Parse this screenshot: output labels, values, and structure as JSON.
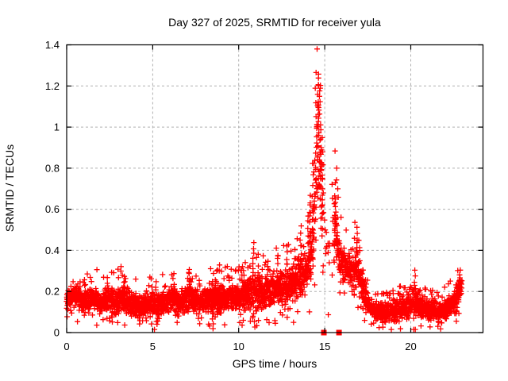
{
  "window": {
    "background": "#ffffff"
  },
  "chart_data": {
    "type": "scatter",
    "title": "Day 327 of 2025, SRMTID for receiver yula",
    "xlabel": "GPS time / hours",
    "ylabel": "SRMTID / TECUs",
    "xlim": [
      0,
      24.2
    ],
    "ylim": [
      0,
      1.4
    ],
    "xticks": [
      0,
      5,
      10,
      15,
      20
    ],
    "yticks": [
      0,
      0.2,
      0.4,
      0.6,
      0.8,
      1,
      1.2,
      1.4
    ],
    "xtick_labels": [
      "0",
      "5",
      "10",
      "15",
      "20"
    ],
    "ytick_labels": [
      "0",
      "0.2",
      "0.4",
      "0.6",
      "0.8",
      "1",
      "1.2",
      "1.4"
    ],
    "grid": true,
    "grid_color": "#b0b0b0",
    "border_color": "#000000",
    "marker": "plus",
    "marker_color": "#ff0000",
    "peak_value": 1.26,
    "peak_hour": 14.62,
    "series": [
      {
        "name": "srmtid-points",
        "style": "plus",
        "color": "#ff0000",
        "x_start": 0.0,
        "x_end": 22.97,
        "samples_per_hour": 105,
        "seed": 327,
        "envelope": [
          [
            0.0,
            0.17,
            0.05
          ],
          [
            0.5,
            0.18,
            0.06
          ],
          [
            1.0,
            0.15,
            0.05
          ],
          [
            1.6,
            0.17,
            0.06
          ],
          [
            2.1,
            0.14,
            0.05
          ],
          [
            2.4,
            0.17,
            0.07
          ],
          [
            2.8,
            0.13,
            0.06
          ],
          [
            3.3,
            0.17,
            0.07
          ],
          [
            3.8,
            0.14,
            0.05
          ],
          [
            4.3,
            0.12,
            0.06
          ],
          [
            4.8,
            0.14,
            0.05
          ],
          [
            5.3,
            0.14,
            0.07
          ],
          [
            5.8,
            0.15,
            0.05
          ],
          [
            6.2,
            0.17,
            0.06
          ],
          [
            6.6,
            0.14,
            0.05
          ],
          [
            7.1,
            0.18,
            0.07
          ],
          [
            7.6,
            0.15,
            0.05
          ],
          [
            8.1,
            0.16,
            0.06
          ],
          [
            8.5,
            0.16,
            0.09
          ],
          [
            9.0,
            0.16,
            0.06
          ],
          [
            9.5,
            0.17,
            0.06
          ],
          [
            10.0,
            0.17,
            0.06
          ],
          [
            10.5,
            0.18,
            0.07
          ],
          [
            10.9,
            0.2,
            0.09
          ],
          [
            11.4,
            0.19,
            0.07
          ],
          [
            11.8,
            0.21,
            0.08
          ],
          [
            12.3,
            0.22,
            0.08
          ],
          [
            12.8,
            0.23,
            0.09
          ],
          [
            13.3,
            0.25,
            0.09
          ],
          [
            13.7,
            0.27,
            0.1
          ],
          [
            14.0,
            0.3,
            0.11
          ],
          [
            14.25,
            0.4,
            0.16
          ],
          [
            14.45,
            0.7,
            0.28
          ],
          [
            14.62,
            0.95,
            0.3
          ],
          [
            14.78,
            0.8,
            0.28
          ],
          [
            14.95,
            0.55,
            0.18
          ],
          [
            15.1,
            0.4,
            0.12
          ],
          [
            15.45,
            0.45,
            0.15
          ],
          [
            15.65,
            0.5,
            0.16
          ],
          [
            15.85,
            0.36,
            0.09
          ],
          [
            16.2,
            0.32,
            0.08
          ],
          [
            16.6,
            0.3,
            0.09
          ],
          [
            16.95,
            0.33,
            0.1
          ],
          [
            17.2,
            0.22,
            0.08
          ],
          [
            17.5,
            0.14,
            0.05
          ],
          [
            17.8,
            0.11,
            0.04
          ],
          [
            18.3,
            0.1,
            0.04
          ],
          [
            18.8,
            0.1,
            0.04
          ],
          [
            19.3,
            0.11,
            0.05
          ],
          [
            19.7,
            0.12,
            0.05
          ],
          [
            20.1,
            0.14,
            0.07
          ],
          [
            20.35,
            0.15,
            0.08
          ],
          [
            20.6,
            0.12,
            0.05
          ],
          [
            21.0,
            0.11,
            0.04
          ],
          [
            21.5,
            0.1,
            0.04
          ],
          [
            22.0,
            0.11,
            0.05
          ],
          [
            22.4,
            0.13,
            0.05
          ],
          [
            22.7,
            0.17,
            0.06
          ],
          [
            22.95,
            0.24,
            0.05
          ]
        ],
        "sparse_ranges": [
          [
            14.92,
            15.55,
            0.22
          ]
        ],
        "columns": [
          [
            2.35,
            0.2,
            0.27,
            4
          ],
          [
            2.62,
            0.05,
            0.13,
            4
          ],
          [
            3.35,
            0.2,
            0.27,
            4
          ],
          [
            4.25,
            0.04,
            0.12,
            5
          ],
          [
            5.3,
            0.05,
            0.12,
            5
          ],
          [
            6.2,
            0.2,
            0.26,
            3
          ],
          [
            7.15,
            0.2,
            0.3,
            6
          ],
          [
            8.5,
            0.02,
            0.13,
            6
          ],
          [
            8.62,
            0.18,
            0.26,
            4
          ],
          [
            10.3,
            0.22,
            0.3,
            4
          ],
          [
            10.85,
            0.25,
            0.44,
            8
          ],
          [
            11.15,
            0.22,
            0.33,
            4
          ],
          [
            11.7,
            0.25,
            0.35,
            5
          ],
          [
            12.25,
            0.28,
            0.38,
            5
          ],
          [
            12.8,
            0.3,
            0.42,
            5
          ],
          [
            13.25,
            0.28,
            0.4,
            4
          ],
          [
            13.6,
            0.32,
            0.48,
            6
          ],
          [
            14.05,
            0.35,
            0.55,
            6
          ],
          [
            14.15,
            0.4,
            0.62,
            6
          ],
          [
            14.3,
            0.45,
            0.82,
            8
          ],
          [
            14.5,
            0.55,
            1.12,
            10
          ],
          [
            14.62,
            0.7,
            1.26,
            12
          ],
          [
            14.72,
            0.65,
            1.18,
            10
          ],
          [
            14.85,
            0.5,
            0.95,
            8
          ],
          [
            15.2,
            0.08,
            0.09,
            1
          ],
          [
            15.6,
            0.5,
            0.73,
            5
          ],
          [
            16.85,
            0.3,
            0.52,
            6
          ],
          [
            20.25,
            0.18,
            0.3,
            5
          ],
          [
            22.85,
            0.2,
            0.3,
            5
          ]
        ]
      },
      {
        "name": "zero-flags",
        "style": "filled-square",
        "color": "#ff0000",
        "points": [
          [
            14.95,
            0
          ],
          [
            15.83,
            0
          ]
        ]
      }
    ]
  }
}
